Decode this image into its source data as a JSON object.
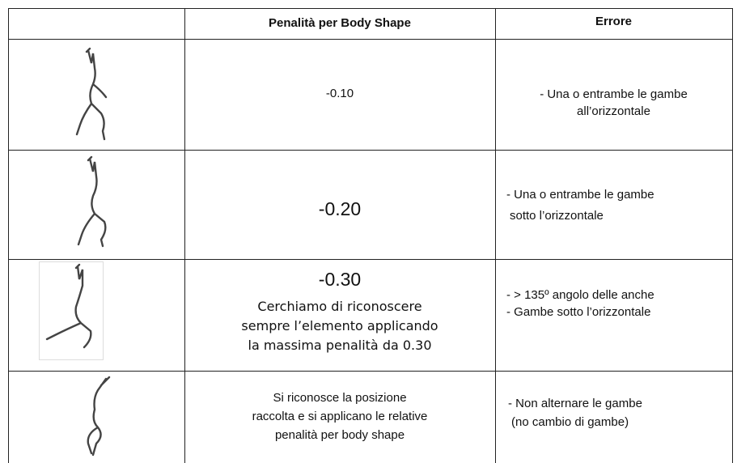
{
  "table": {
    "headers": [
      "Penalità per Body Shape",
      "Errore"
    ],
    "rows": [
      {
        "penalty": [
          "-0.10"
        ],
        "error": [
          "- Una o entrambe le gambe",
          "all’orizzontale"
        ]
      },
      {
        "penalty": [
          "-0.20"
        ],
        "error": [
          "- Una o entrambe le gambe",
          "sotto l’orizzontale"
        ]
      },
      {
        "penalty": [
          "-0.30"
        ],
        "note": [
          "Cerchiamo di riconoscere",
          "sempre l’elemento applicando",
          "la massima penalità da 0.30"
        ],
        "error": [
          "- > 135º angolo delle anche",
          "- Gambe sotto l’orizzontale"
        ]
      },
      {
        "penalty": [
          "Si riconosce la posizione",
          "raccolta e si applicano le relative",
          "penalità per body shape"
        ],
        "error": [
          "- Non alternare le gambe",
          "(no cambio di gambe)"
        ]
      }
    ]
  }
}
